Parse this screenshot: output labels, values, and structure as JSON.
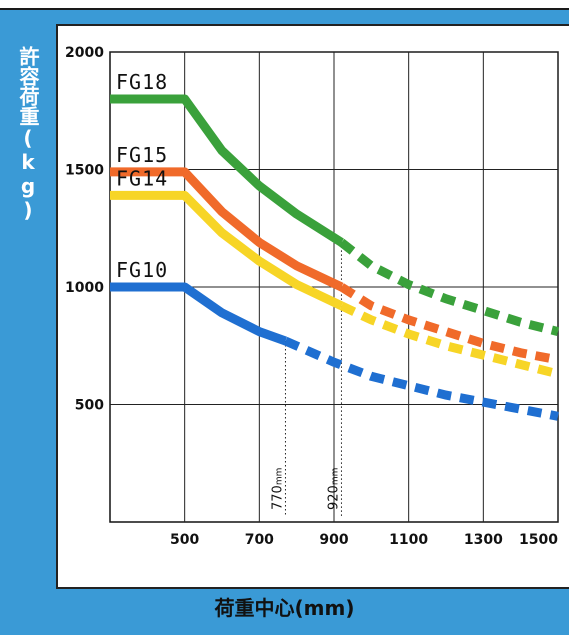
{
  "chart_data": {
    "type": "line",
    "title": "",
    "xlabel": "荷重中心(mm)",
    "ylabel": "許容荷重(kg)",
    "xlim": [
      300,
      1500
    ],
    "ylim": [
      0,
      2000
    ],
    "x_ticks": [
      "500",
      "700",
      "900",
      "1100",
      "1300",
      "1500"
    ],
    "y_ticks": [
      "500",
      "1000",
      "1500",
      "2000"
    ],
    "x_tick_values": [
      500,
      700,
      900,
      1100,
      1300,
      1500
    ],
    "y_tick_values": [
      500,
      1000,
      1500,
      2000
    ],
    "grid": true,
    "series": [
      {
        "name": "FG18",
        "label": "FG18",
        "color": "#3aa13b",
        "x": [
          300,
          500,
          600,
          700,
          800,
          920,
          1000,
          1100,
          1200,
          1300,
          1400,
          1500
        ],
        "y": [
          1800,
          1800,
          1580,
          1430,
          1310,
          1190,
          1090,
          1010,
          950,
          900,
          850,
          810
        ],
        "dashed_from_x": 920
      },
      {
        "name": "FG15",
        "label": "FG15",
        "color": "#f06a2a",
        "x": [
          300,
          500,
          600,
          700,
          800,
          920,
          1000,
          1100,
          1200,
          1300,
          1400,
          1500
        ],
        "y": [
          1490,
          1490,
          1320,
          1190,
          1090,
          1000,
          920,
          860,
          810,
          760,
          720,
          690
        ],
        "dashed_from_x": 920
      },
      {
        "name": "FG14",
        "label": "FG14",
        "color": "#f7d526",
        "x": [
          300,
          500,
          600,
          700,
          800,
          920,
          1000,
          1100,
          1200,
          1300,
          1400,
          1500
        ],
        "y": [
          1390,
          1390,
          1230,
          1110,
          1010,
          920,
          860,
          800,
          750,
          710,
          670,
          630
        ],
        "dashed_from_x": 920
      },
      {
        "name": "FG10",
        "label": "FG10",
        "color": "#1f6fd1",
        "x": [
          300,
          500,
          600,
          700,
          770,
          900,
          1000,
          1100,
          1200,
          1300,
          1400,
          1500
        ],
        "y": [
          1000,
          1000,
          890,
          810,
          770,
          680,
          620,
          580,
          540,
          510,
          480,
          450
        ],
        "dashed_from_x": 770
      }
    ],
    "annotations": [
      {
        "x": 770,
        "y_top": 770,
        "text": "770",
        "unit": "mm"
      },
      {
        "x": 920,
        "y_top": 1190,
        "text": "920",
        "unit": "mm"
      }
    ]
  }
}
